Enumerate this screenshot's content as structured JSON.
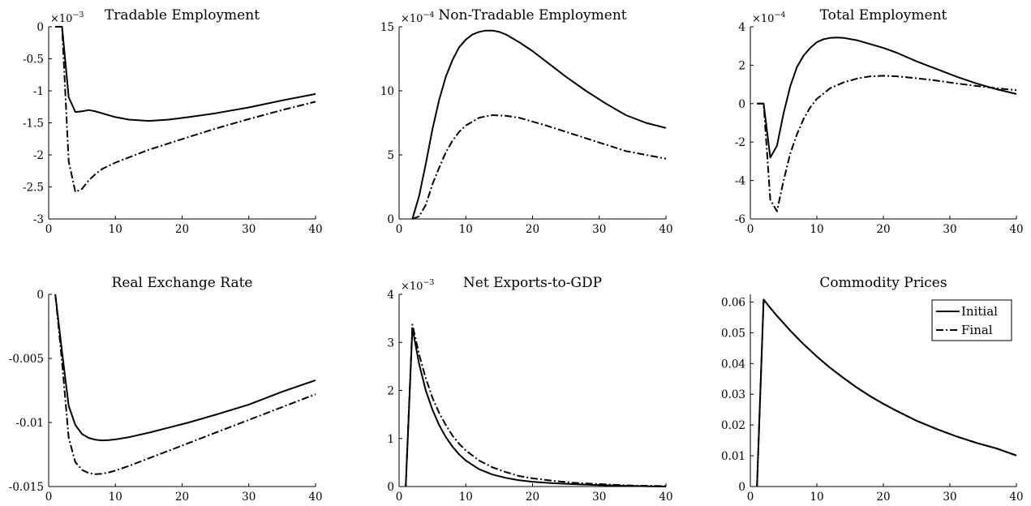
{
  "chart_data": [
    {
      "type": "line",
      "title": "Tradable Employment",
      "exponent_label": "×10−3",
      "exponent_base": "×10",
      "exponent_power": "−3",
      "xlim": [
        0,
        40
      ],
      "ylim": [
        -3,
        0
      ],
      "xticks": [
        0,
        10,
        20,
        30,
        40
      ],
      "yticks": [
        -3,
        -2.5,
        -2,
        -1.5,
        -1,
        -0.5,
        0
      ],
      "ytick_labels": [
        "-3",
        "-2.5",
        "-2",
        "-1.5",
        "-1",
        "-0.5",
        "0"
      ],
      "series": [
        {
          "name": "Initial",
          "style": "solid",
          "x": [
            1,
            2,
            3,
            4,
            5,
            6,
            7,
            8,
            10,
            12,
            15,
            18,
            21,
            25,
            30,
            35,
            40
          ],
          "y": [
            0,
            0,
            -1.1,
            -1.33,
            -1.32,
            -1.3,
            -1.32,
            -1.35,
            -1.41,
            -1.45,
            -1.47,
            -1.45,
            -1.41,
            -1.35,
            -1.26,
            -1.15,
            -1.05
          ]
        },
        {
          "name": "Final",
          "style": "dashdot",
          "x": [
            1,
            2,
            3,
            4,
            5,
            6,
            7,
            8,
            10,
            12,
            15,
            18,
            21,
            25,
            30,
            35,
            40
          ],
          "y": [
            0,
            0,
            -2.1,
            -2.58,
            -2.53,
            -2.4,
            -2.3,
            -2.22,
            -2.12,
            -2.04,
            -1.92,
            -1.82,
            -1.72,
            -1.59,
            -1.44,
            -1.3,
            -1.17
          ]
        }
      ]
    },
    {
      "type": "line",
      "title": "Non-Tradable Employment",
      "exponent_label": "×10−4",
      "exponent_base": "×10",
      "exponent_power": "−4",
      "xlim": [
        0,
        40
      ],
      "ylim": [
        0,
        15
      ],
      "xticks": [
        0,
        10,
        20,
        30,
        40
      ],
      "yticks": [
        0,
        5,
        10,
        15
      ],
      "ytick_labels": [
        "0",
        "5",
        "10",
        "15"
      ],
      "series": [
        {
          "name": "Initial",
          "style": "solid",
          "x": [
            2,
            3,
            4,
            5,
            6,
            7,
            8,
            9,
            10,
            11,
            12,
            13,
            14,
            15,
            16,
            18,
            20,
            22,
            25,
            28,
            31,
            34,
            37,
            40
          ],
          "y": [
            0,
            1.8,
            4.3,
            7,
            9.3,
            11.1,
            12.4,
            13.4,
            14,
            14.4,
            14.6,
            14.7,
            14.7,
            14.6,
            14.4,
            13.8,
            13.1,
            12.3,
            11.1,
            10,
            9,
            8.1,
            7.5,
            7.1
          ]
        },
        {
          "name": "Final",
          "style": "dashdot",
          "x": [
            2,
            3,
            4,
            5,
            6,
            7,
            8,
            9,
            10,
            12,
            14,
            16,
            18,
            20,
            22,
            25,
            28,
            31,
            34,
            37,
            40
          ],
          "y": [
            0,
            0.2,
            1.1,
            2.7,
            4,
            5.2,
            6.1,
            6.8,
            7.3,
            7.9,
            8.1,
            8.05,
            7.9,
            7.6,
            7.3,
            6.8,
            6.3,
            5.8,
            5.3,
            5,
            4.7
          ]
        }
      ]
    },
    {
      "type": "line",
      "title": "Total Employment",
      "exponent_label": "×10−4",
      "exponent_base": "×10",
      "exponent_power": "−4",
      "xlim": [
        0,
        40
      ],
      "ylim": [
        -6,
        4
      ],
      "xticks": [
        0,
        10,
        20,
        30,
        40
      ],
      "yticks": [
        -6,
        -4,
        -2,
        0,
        2,
        4
      ],
      "ytick_labels": [
        "-6",
        "-4",
        "-2",
        "0",
        "2",
        "4"
      ],
      "series": [
        {
          "name": "Initial",
          "style": "solid",
          "x": [
            1,
            2,
            3,
            4,
            5,
            6,
            7,
            8,
            9,
            10,
            11,
            12,
            13,
            14,
            16,
            18,
            20,
            22,
            25,
            28,
            31,
            34,
            37,
            40
          ],
          "y": [
            0,
            0,
            -2.8,
            -2.2,
            -0.5,
            0.9,
            1.9,
            2.5,
            2.9,
            3.2,
            3.35,
            3.42,
            3.44,
            3.42,
            3.3,
            3.1,
            2.9,
            2.65,
            2.2,
            1.8,
            1.4,
            1.05,
            0.75,
            0.5
          ]
        },
        {
          "name": "Final",
          "style": "dashdot",
          "x": [
            1,
            2,
            3,
            4,
            5,
            6,
            7,
            8,
            9,
            10,
            12,
            14,
            16,
            18,
            20,
            22,
            25,
            28,
            31,
            34,
            37,
            40
          ],
          "y": [
            0,
            0,
            -5,
            -5.6,
            -4,
            -2.6,
            -1.6,
            -0.8,
            -0.2,
            0.25,
            0.8,
            1.1,
            1.3,
            1.42,
            1.45,
            1.42,
            1.32,
            1.2,
            1.05,
            0.92,
            0.8,
            0.7
          ]
        }
      ]
    },
    {
      "type": "line",
      "title": "Real Exchange Rate",
      "xlim": [
        0,
        40
      ],
      "ylim": [
        -0.015,
        0
      ],
      "xticks": [
        0,
        10,
        20,
        30,
        40
      ],
      "yticks": [
        -0.015,
        -0.01,
        -0.005,
        0
      ],
      "ytick_labels": [
        "-0.015",
        "-0.01",
        "-0.005",
        "0"
      ],
      "series": [
        {
          "name": "Initial",
          "style": "solid",
          "x": [
            1,
            2,
            3,
            4,
            5,
            6,
            7,
            8,
            9,
            10,
            12,
            15,
            18,
            21,
            25,
            30,
            35,
            40
          ],
          "y": [
            0,
            -0.0045,
            -0.0087,
            -0.0102,
            -0.0109,
            -0.0112,
            -0.01135,
            -0.0114,
            -0.01138,
            -0.01132,
            -0.01115,
            -0.0108,
            -0.0104,
            -0.01,
            -0.0094,
            -0.0086,
            -0.0076,
            -0.0067
          ]
        },
        {
          "name": "Final",
          "style": "dashdot",
          "x": [
            1,
            2,
            3,
            4,
            5,
            6,
            7,
            8,
            9,
            10,
            12,
            15,
            18,
            21,
            25,
            30,
            35,
            40
          ],
          "y": [
            0,
            -0.0053,
            -0.0112,
            -0.0131,
            -0.0137,
            -0.01395,
            -0.01403,
            -0.014,
            -0.0139,
            -0.01375,
            -0.0134,
            -0.0128,
            -0.0122,
            -0.0116,
            -0.0108,
            -0.0098,
            -0.0088,
            -0.0078
          ]
        }
      ]
    },
    {
      "type": "line",
      "title": "Net Exports-to-GDP",
      "exponent_label": "×10−3",
      "exponent_base": "×10",
      "exponent_power": "−3",
      "xlim": [
        0,
        40
      ],
      "ylim": [
        0,
        4
      ],
      "xticks": [
        0,
        10,
        20,
        30,
        40
      ],
      "yticks": [
        0,
        1,
        2,
        3,
        4
      ],
      "ytick_labels": [
        "0",
        "1",
        "2",
        "3",
        "4"
      ],
      "series": [
        {
          "name": "Initial",
          "style": "solid",
          "x": [
            1,
            2,
            3,
            4,
            5,
            6,
            7,
            8,
            9,
            10,
            12,
            14,
            16,
            18,
            20,
            23,
            26,
            30,
            35,
            40
          ],
          "y": [
            0,
            3.3,
            2.55,
            2.0,
            1.6,
            1.28,
            1.03,
            0.83,
            0.67,
            0.54,
            0.36,
            0.25,
            0.18,
            0.13,
            0.1,
            0.07,
            0.05,
            0.03,
            0.01,
            0
          ]
        },
        {
          "name": "Final",
          "style": "dashdot",
          "x": [
            1,
            2,
            3,
            4,
            5,
            6,
            7,
            8,
            9,
            10,
            12,
            14,
            16,
            18,
            20,
            23,
            26,
            30,
            35,
            40
          ],
          "y": [
            0,
            3.37,
            2.75,
            2.25,
            1.85,
            1.53,
            1.28,
            1.06,
            0.89,
            0.75,
            0.54,
            0.4,
            0.3,
            0.22,
            0.17,
            0.12,
            0.08,
            0.05,
            0.02,
            0.01
          ]
        }
      ]
    },
    {
      "type": "line",
      "title": "Commodity Prices",
      "xlim": [
        0,
        40
      ],
      "ylim": [
        0,
        0.0625
      ],
      "xticks": [
        0,
        10,
        20,
        30,
        40
      ],
      "yticks": [
        0,
        0.01,
        0.02,
        0.03,
        0.04,
        0.05,
        0.06
      ],
      "ytick_labels": [
        "0",
        "0.01",
        "0.02",
        "0.03",
        "0.04",
        "0.05",
        "0.06"
      ],
      "legend": {
        "position": "top-right",
        "entries": [
          "Initial",
          "Final"
        ]
      },
      "series": [
        {
          "name": "Initial",
          "style": "solid",
          "x": [
            1,
            2,
            3,
            4,
            5,
            6,
            8,
            10,
            12,
            14,
            16,
            18,
            20,
            22,
            25,
            28,
            31,
            34,
            37,
            40
          ],
          "y": [
            0,
            0.0608,
            0.0581,
            0.0555,
            0.0531,
            0.0507,
            0.0463,
            0.0423,
            0.0386,
            0.0353,
            0.0322,
            0.0294,
            0.0269,
            0.0246,
            0.0214,
            0.0187,
            0.0163,
            0.0142,
            0.0124,
            0.0101
          ]
        },
        {
          "name": "Final",
          "style": "dashdot",
          "x": [
            1,
            2,
            3,
            4,
            5,
            6,
            8,
            10,
            12,
            14,
            16,
            18,
            20,
            22,
            25,
            28,
            31,
            34,
            37,
            40
          ],
          "y": [
            0,
            0.0608,
            0.0581,
            0.0555,
            0.0531,
            0.0507,
            0.0463,
            0.0423,
            0.0386,
            0.0353,
            0.0322,
            0.0294,
            0.0269,
            0.0246,
            0.0214,
            0.0187,
            0.0163,
            0.0142,
            0.0124,
            0.0101
          ]
        }
      ]
    }
  ]
}
